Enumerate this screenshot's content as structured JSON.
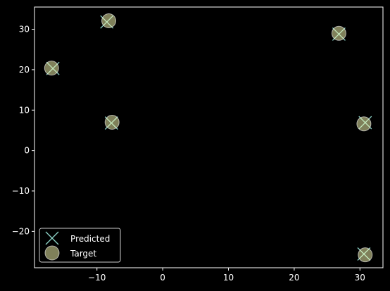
{
  "chart_data": {
    "type": "scatter",
    "title": "",
    "xlabel": "",
    "ylabel": "",
    "xlim": [
      -19.5,
      33.5
    ],
    "ylim": [
      -29,
      35.5
    ],
    "xticks": [
      -10,
      0,
      10,
      20,
      30
    ],
    "yticks": [
      -20,
      -10,
      0,
      10,
      20,
      30
    ],
    "xtick_labels": [
      "−10",
      "0",
      "10",
      "20",
      "30"
    ],
    "ytick_labels": [
      "−20",
      "−10",
      "0",
      "10",
      "20",
      "30"
    ],
    "grid": false,
    "legend_placement": "lower-left",
    "series": [
      {
        "name": "Predicted",
        "marker": "x",
        "color": "#8dd3c7",
        "points": [
          {
            "x": -8.5,
            "y": 31.8
          },
          {
            "x": -16.7,
            "y": 20.3
          },
          {
            "x": -7.8,
            "y": 6.8
          },
          {
            "x": 26.8,
            "y": 28.8
          },
          {
            "x": 30.8,
            "y": 6.9
          },
          {
            "x": 30.6,
            "y": -25.6
          }
        ]
      },
      {
        "name": "Target",
        "marker": "o",
        "color": "#feffb3",
        "points": [
          {
            "x": -8.2,
            "y": 32.1
          },
          {
            "x": -16.9,
            "y": 20.4
          },
          {
            "x": -7.7,
            "y": 7.0
          },
          {
            "x": 26.8,
            "y": 29.0
          },
          {
            "x": 30.6,
            "y": 6.6
          },
          {
            "x": 30.8,
            "y": -25.8
          }
        ]
      }
    ]
  },
  "colors": {
    "background": "#000000",
    "axes": "#ffffff",
    "predicted": "#8dd3c7",
    "target": "#feffb3",
    "target_edge": "#ffffff"
  }
}
